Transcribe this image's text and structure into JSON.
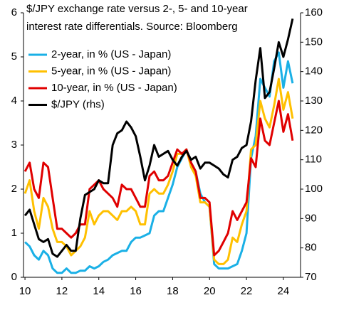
{
  "chart_data": {
    "type": "line",
    "title": [
      "$/JPY exchange rate versus 2-, 5- and 10-year",
      "interest rate differentials. Source: Bloomberg"
    ],
    "x": [
      2010,
      2010.25,
      2010.5,
      2010.75,
      2011,
      2011.25,
      2011.5,
      2011.75,
      2012,
      2012.25,
      2012.5,
      2012.75,
      2013,
      2013.25,
      2013.5,
      2013.75,
      2014,
      2014.25,
      2014.5,
      2014.75,
      2015,
      2015.25,
      2015.5,
      2015.75,
      2016,
      2016.25,
      2016.5,
      2016.75,
      2017,
      2017.25,
      2017.5,
      2017.75,
      2018,
      2018.25,
      2018.5,
      2018.75,
      2019,
      2019.25,
      2019.5,
      2019.75,
      2020,
      2020.25,
      2020.5,
      2020.75,
      2021,
      2021.25,
      2021.5,
      2021.75,
      2022,
      2022.25,
      2022.5,
      2022.75,
      2023,
      2023.25,
      2023.5,
      2023.75,
      2024,
      2024.25,
      2024.5
    ],
    "series": [
      {
        "name": "2-year, in % (US - Japan)",
        "color": "#1ab0e6",
        "values": [
          0.8,
          0.7,
          0.5,
          0.4,
          0.6,
          0.5,
          0.2,
          0.1,
          0.1,
          0.2,
          0.1,
          0.1,
          0.15,
          0.15,
          0.25,
          0.2,
          0.25,
          0.35,
          0.4,
          0.5,
          0.55,
          0.6,
          0.6,
          0.8,
          0.9,
          0.9,
          0.95,
          1.0,
          1.4,
          1.5,
          1.5,
          1.8,
          2.1,
          2.5,
          2.7,
          2.9,
          2.6,
          2.4,
          1.9,
          1.7,
          1.6,
          0.3,
          0.2,
          0.2,
          0.2,
          0.25,
          0.3,
          0.6,
          1.0,
          2.7,
          3.2,
          4.5,
          4.3,
          4.1,
          4.9,
          5.1,
          4.3,
          4.9,
          4.4
        ]
      },
      {
        "name": "5-year, in % (US - Japan)",
        "color": "#ffc000",
        "values": [
          1.9,
          2.2,
          1.5,
          1.1,
          1.8,
          1.6,
          1.1,
          0.8,
          0.8,
          0.7,
          0.5,
          0.6,
          0.7,
          0.9,
          1.5,
          1.2,
          1.4,
          1.5,
          1.5,
          1.4,
          1.3,
          1.5,
          1.5,
          1.6,
          1.5,
          1.2,
          1.2,
          1.9,
          2.0,
          1.9,
          1.9,
          2.1,
          2.4,
          2.8,
          2.8,
          2.9,
          2.5,
          2.3,
          1.7,
          1.7,
          1.6,
          0.4,
          0.3,
          0.3,
          0.4,
          0.9,
          0.8,
          1.2,
          1.5,
          2.9,
          3.0,
          4.0,
          3.6,
          3.4,
          3.9,
          4.5,
          3.8,
          4.2,
          3.6
        ]
      },
      {
        "name": "10-year, in % (US - Japan)",
        "color": "#e00000",
        "values": [
          2.4,
          2.6,
          2.0,
          1.8,
          2.6,
          2.5,
          1.8,
          1.1,
          1.1,
          1.0,
          0.9,
          1.0,
          1.2,
          1.2,
          2.0,
          2.1,
          2.2,
          2.0,
          1.9,
          1.8,
          1.6,
          2.1,
          2.0,
          2.0,
          1.8,
          1.6,
          1.6,
          2.3,
          2.4,
          2.2,
          2.2,
          2.3,
          2.6,
          2.9,
          2.8,
          2.9,
          2.6,
          2.4,
          1.8,
          1.8,
          1.7,
          0.5,
          0.6,
          0.8,
          1.0,
          1.5,
          1.3,
          1.5,
          1.7,
          2.7,
          2.5,
          3.6,
          3.1,
          3.0,
          3.5,
          4.0,
          3.3,
          3.7,
          3.1
        ]
      },
      {
        "name": "$/JPY (rhs)",
        "color": "#000000",
        "axis": "y2",
        "values": [
          91,
          93,
          88,
          83,
          82,
          83,
          78,
          77,
          79,
          81,
          79,
          79,
          90,
          98,
          99,
          100,
          103,
          102,
          102,
          115,
          119,
          120,
          123,
          121,
          118,
          111,
          103,
          108,
          115,
          111,
          112,
          113,
          110,
          108,
          111,
          113,
          110,
          111,
          107,
          109,
          109,
          108,
          107,
          105,
          104,
          110,
          111,
          114,
          115,
          123,
          137,
          148,
          131,
          133,
          141,
          150,
          145,
          151,
          158
        ]
      }
    ],
    "xlim": [
      2009.92,
      2024.93
    ],
    "xticks": [
      {
        "value": 2010,
        "label": "10"
      },
      {
        "value": 2012,
        "label": "12"
      },
      {
        "value": 2014,
        "label": "14"
      },
      {
        "value": 2016,
        "label": "16"
      },
      {
        "value": 2018,
        "label": "18"
      },
      {
        "value": 2020,
        "label": "20"
      },
      {
        "value": 2022,
        "label": "22"
      },
      {
        "value": 2024,
        "label": "24"
      }
    ],
    "ylim": [
      0,
      6
    ],
    "yticks": [
      0,
      1,
      2,
      3,
      4,
      5,
      6
    ],
    "y2lim": [
      70,
      160
    ],
    "y2ticks": [
      70,
      80,
      90,
      100,
      110,
      120,
      130,
      140,
      150,
      160
    ]
  }
}
